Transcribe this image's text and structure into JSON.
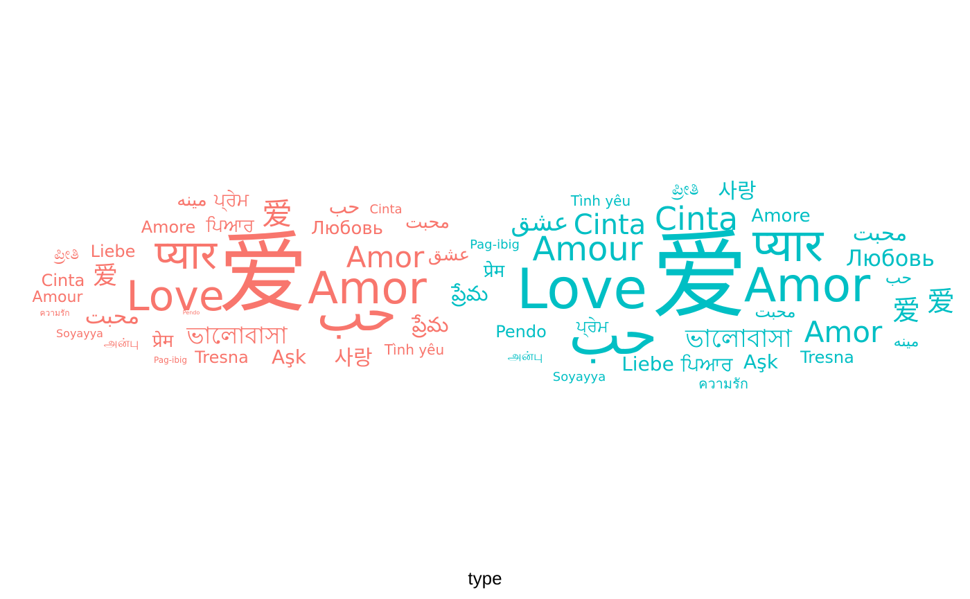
{
  "chart_data": {
    "type": "wordcloud",
    "xlabel": "type",
    "colors": {
      "a": "#F8766D",
      "b": "#00BFC4"
    },
    "groups": [
      {
        "color": "#F8766D",
        "words": [
          {
            "text": "爱",
            "rank": 1
          },
          {
            "text": "Love",
            "rank": 2
          },
          {
            "text": "Amor",
            "rank": 3
          },
          {
            "text": "حب",
            "rank": 4
          },
          {
            "text": "प्यार",
            "rank": 5
          },
          {
            "text": "Amor",
            "rank": 6
          },
          {
            "text": "ভালোবাসা",
            "rank": 7
          },
          {
            "text": "Любовь",
            "rank": 8
          },
          {
            "text": "爱",
            "rank": 9
          },
          {
            "text": "عشق",
            "rank": 10
          },
          {
            "text": "ప్రేమ",
            "rank": 11
          },
          {
            "text": "사랑",
            "rank": 12
          },
          {
            "text": "Amore",
            "rank": 13
          },
          {
            "text": "ਪਿਆਰ",
            "rank": 14
          },
          {
            "text": "Aşk",
            "rank": 15
          },
          {
            "text": "مينه",
            "rank": 16
          },
          {
            "text": "ਪ੍ਰੇਮ",
            "rank": 17
          },
          {
            "text": "محبت",
            "rank": 18
          },
          {
            "text": "محبت",
            "rank": 19
          },
          {
            "text": "Liebe",
            "rank": 20
          },
          {
            "text": "爱",
            "rank": 21
          },
          {
            "text": "Cinta",
            "rank": 22
          },
          {
            "text": "ಪ್ರೀತಿ",
            "rank": 23
          },
          {
            "text": "Tresna",
            "rank": 24
          },
          {
            "text": "प्रेम",
            "rank": 25
          },
          {
            "text": "Amour",
            "rank": 26
          },
          {
            "text": "Tình yêu",
            "rank": 27
          },
          {
            "text": "حب",
            "rank": 28
          },
          {
            "text": "Cinta",
            "rank": 29
          },
          {
            "text": "Soyayya",
            "rank": 30
          },
          {
            "text": "அன்பு",
            "rank": 31
          },
          {
            "text": "Pag-ibig",
            "rank": 32
          },
          {
            "text": "ความรัก",
            "rank": 33
          },
          {
            "text": "Pendo",
            "rank": 34
          }
        ]
      },
      {
        "color": "#00BFC4",
        "words": [
          {
            "text": "爱",
            "rank": 1
          },
          {
            "text": "Love",
            "rank": 2
          },
          {
            "text": "Amor",
            "rank": 3
          },
          {
            "text": "حب",
            "rank": 4
          },
          {
            "text": "प्यार",
            "rank": 5
          },
          {
            "text": "Amour",
            "rank": 6
          },
          {
            "text": "Cinta",
            "rank": 7
          },
          {
            "text": "Cinta",
            "rank": 8
          },
          {
            "text": "Amor",
            "rank": 9
          },
          {
            "text": "ভালোবাসা",
            "rank": 10
          },
          {
            "text": "Любовь",
            "rank": 11
          },
          {
            "text": "محبت",
            "rank": 12
          },
          {
            "text": "عشق",
            "rank": 13
          },
          {
            "text": "爱",
            "rank": 14
          },
          {
            "text": "爱",
            "rank": 15
          },
          {
            "text": "ప్రేమ",
            "rank": 16
          },
          {
            "text": "사랑",
            "rank": 17
          },
          {
            "text": "Amore",
            "rank": 18
          },
          {
            "text": "ਪਿਆਰ",
            "rank": 19
          },
          {
            "text": "Liebe",
            "rank": 20
          },
          {
            "text": "Aşk",
            "rank": 21
          },
          {
            "text": "प्रेम",
            "rank": 22
          },
          {
            "text": "ಪ್ರೀತಿ",
            "rank": 23
          },
          {
            "text": "ਪ੍ਰੇਮ",
            "rank": 24
          },
          {
            "text": "محبت",
            "rank": 25
          },
          {
            "text": "حب",
            "rank": 26
          },
          {
            "text": "مينه",
            "rank": 27
          },
          {
            "text": "Pendo",
            "rank": 28
          },
          {
            "text": "Tresna",
            "rank": 29
          },
          {
            "text": "Tình yêu",
            "rank": 30
          },
          {
            "text": "ความรัก",
            "rank": 31
          },
          {
            "text": "அன்பு",
            "rank": 32
          },
          {
            "text": "Pag-ibig",
            "rank": 33
          },
          {
            "text": "Soyayya",
            "rank": 34
          }
        ]
      }
    ]
  }
}
